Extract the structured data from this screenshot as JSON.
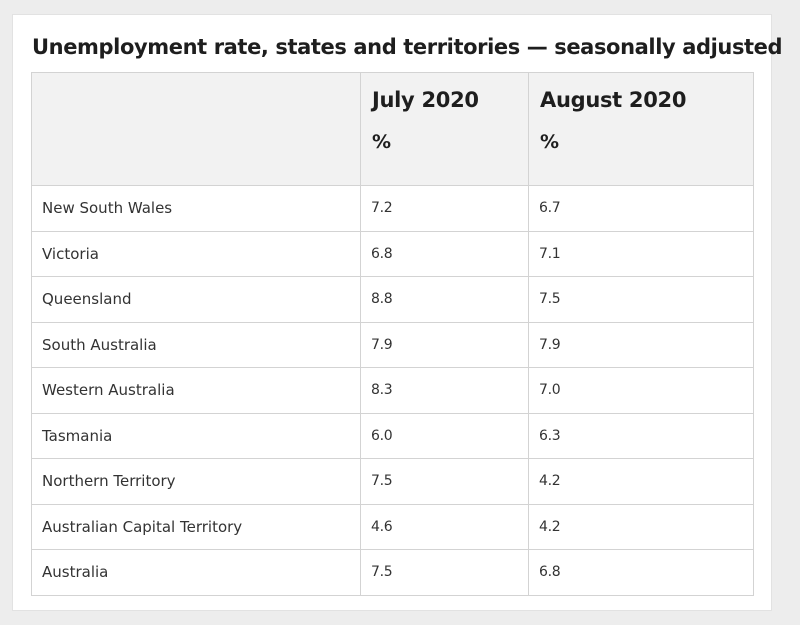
{
  "chart_data": {
    "type": "table",
    "title": "Unemployment rate, states and territories — seasonally adjusted",
    "columns": [
      {
        "label": "July 2020",
        "unit": "%"
      },
      {
        "label": "August 2020",
        "unit": "%"
      }
    ],
    "rows": [
      {
        "label": "New South Wales",
        "values": [
          "7.2",
          "6.7"
        ]
      },
      {
        "label": "Victoria",
        "values": [
          "6.8",
          "7.1"
        ]
      },
      {
        "label": "Queensland",
        "values": [
          "8.8",
          "7.5"
        ]
      },
      {
        "label": "South Australia",
        "values": [
          "7.9",
          "7.9"
        ]
      },
      {
        "label": "Western Australia",
        "values": [
          "8.3",
          "7.0"
        ]
      },
      {
        "label": "Tasmania",
        "values": [
          "6.0",
          "6.3"
        ]
      },
      {
        "label": "Northern Territory",
        "values": [
          "7.5",
          "4.2"
        ]
      },
      {
        "label": "Australian Capital Territory",
        "values": [
          "4.6",
          "4.2"
        ]
      },
      {
        "label": "Australia",
        "values": [
          "7.5",
          "6.8"
        ]
      }
    ]
  }
}
